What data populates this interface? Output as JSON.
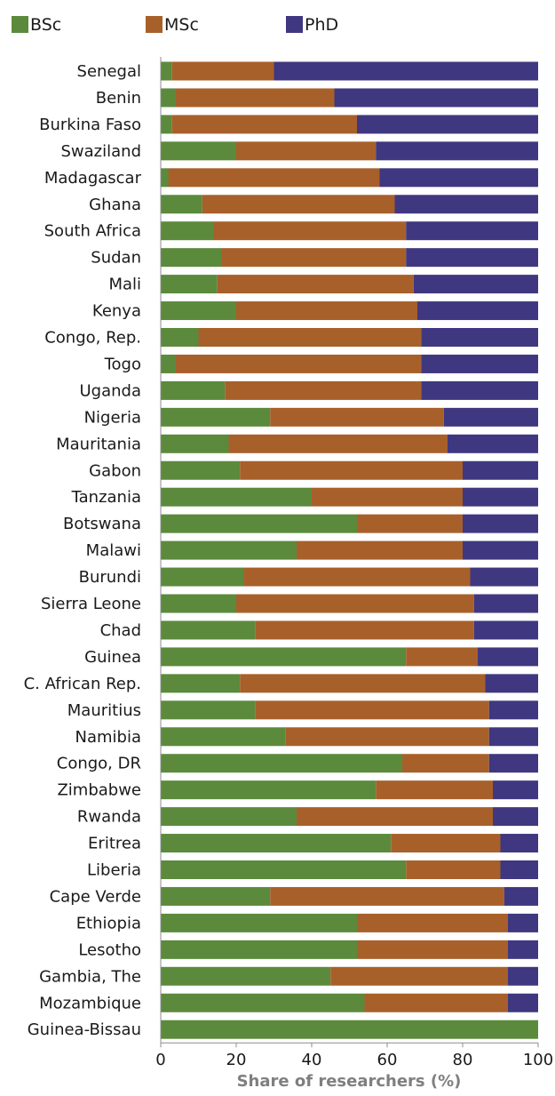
{
  "chart_data": {
    "type": "bar",
    "orientation": "horizontal",
    "stacked": true,
    "categories": [
      "Senegal",
      "Benin",
      "Burkina Faso",
      "Swaziland",
      "Madagascar",
      "Ghana",
      "South Africa",
      "Sudan",
      "Mali",
      "Kenya",
      "Congo, Rep.",
      "Togo",
      "Uganda",
      "Nigeria",
      "Mauritania",
      "Gabon",
      "Tanzania",
      "Botswana",
      "Malawi",
      "Burundi",
      "Sierra Leone",
      "Chad",
      "Guinea",
      "C. African Rep.",
      "Mauritius",
      "Namibia",
      "Congo, DR",
      "Zimbabwe",
      "Rwanda",
      "Eritrea",
      "Liberia",
      "Cape Verde",
      "Ethiopia",
      "Lesotho",
      "Gambia, The",
      "Mozambique",
      "Guinea-Bissau"
    ],
    "series": [
      {
        "name": "BSc",
        "color": "#5b8a3c",
        "values": [
          3,
          4,
          3,
          20,
          2,
          11,
          14,
          16,
          15,
          20,
          10,
          4,
          17,
          29,
          18,
          21,
          40,
          52,
          36,
          22,
          20,
          25,
          65,
          21,
          25,
          33,
          64,
          57,
          36,
          61,
          65,
          29,
          52,
          52,
          45,
          54,
          100
        ]
      },
      {
        "name": "MSc",
        "color": "#a8602a",
        "values": [
          27,
          42,
          49,
          37,
          56,
          51,
          51,
          49,
          52,
          48,
          59,
          65,
          52,
          46,
          58,
          59,
          40,
          28,
          44,
          60,
          63,
          58,
          19,
          65,
          62,
          54,
          23,
          31,
          52,
          29,
          25,
          62,
          40,
          40,
          47,
          38,
          0
        ]
      },
      {
        "name": "PhD",
        "color": "#3f3880",
        "values": [
          70,
          54,
          48,
          43,
          42,
          38,
          35,
          35,
          33,
          32,
          31,
          31,
          31,
          25,
          24,
          20,
          20,
          20,
          20,
          18,
          17,
          17,
          16,
          14,
          13,
          13,
          13,
          12,
          12,
          10,
          10,
          9,
          8,
          8,
          8,
          8,
          0
        ]
      }
    ],
    "xlim": [
      0,
      100
    ],
    "xticks": [
      "0",
      "20",
      "40",
      "60",
      "80",
      "100"
    ],
    "xlabel": "Share of researchers (%)",
    "ylabel": "",
    "title": "",
    "legend_position": "top",
    "grid": false
  }
}
